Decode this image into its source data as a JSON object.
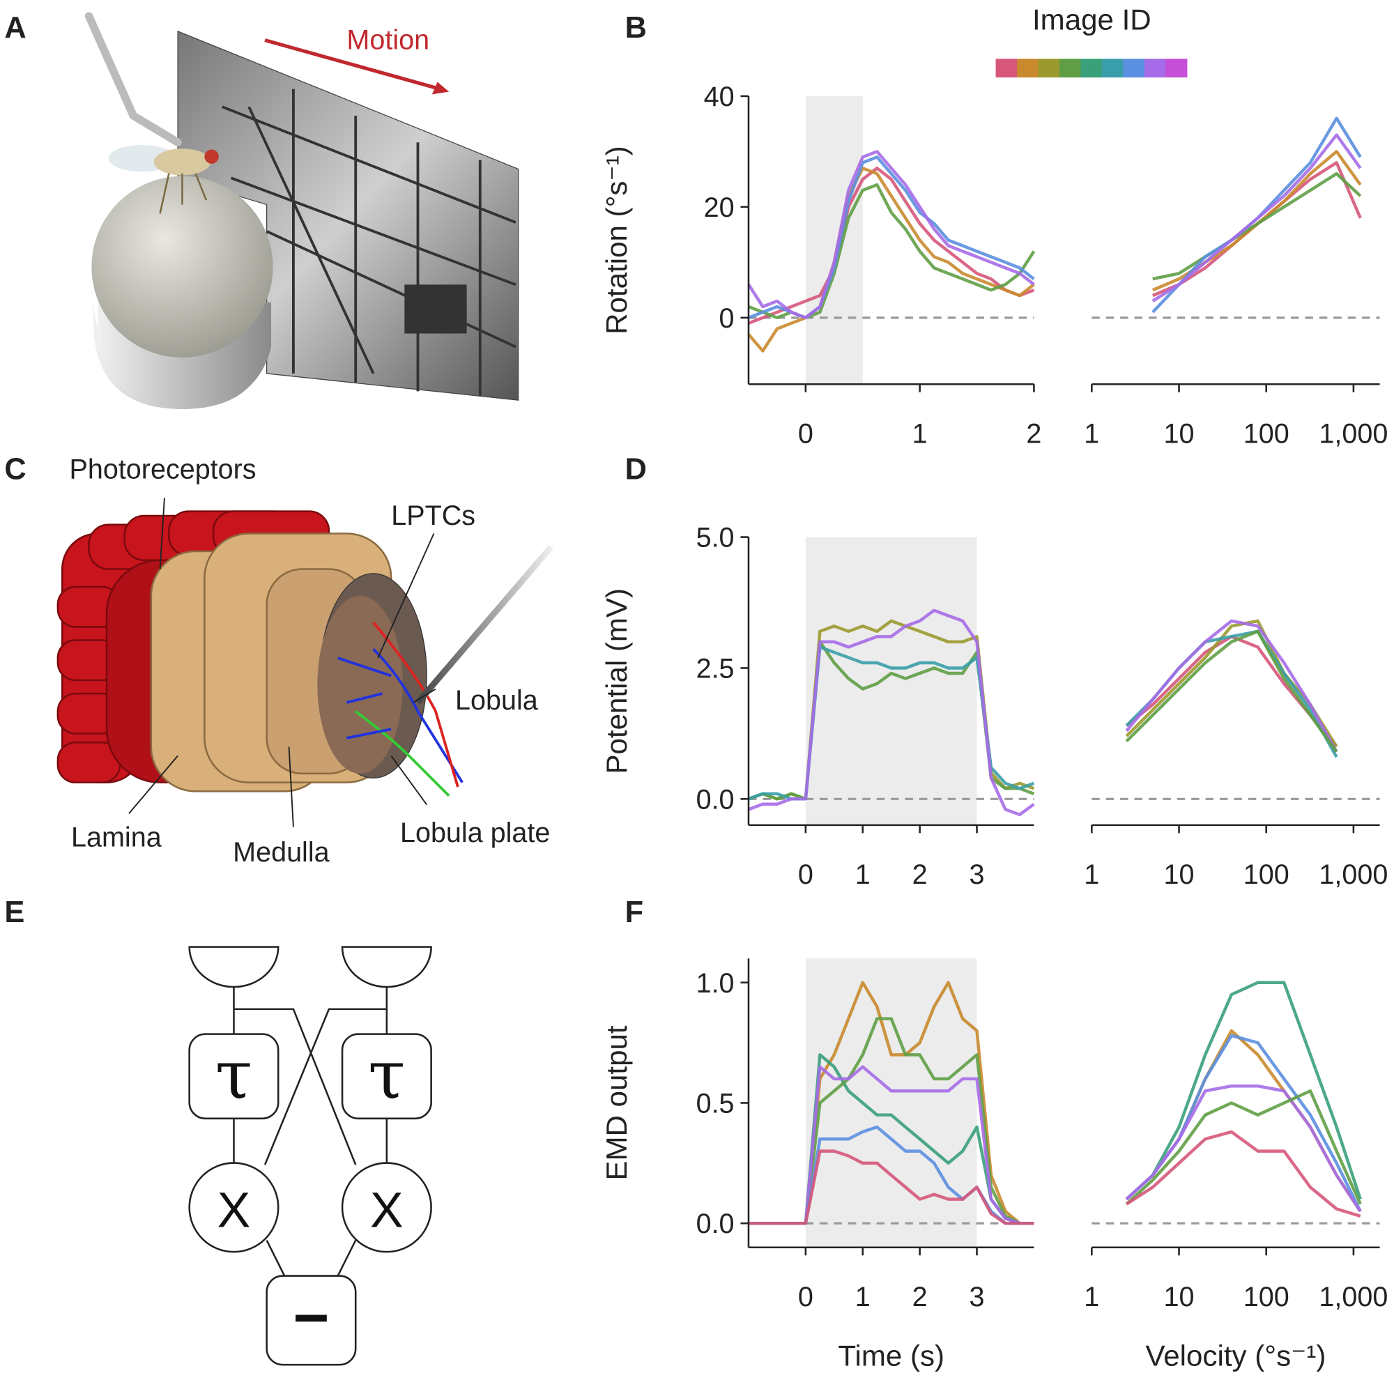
{
  "panel_labels": [
    "A",
    "B",
    "C",
    "D",
    "E",
    "F"
  ],
  "panel_a": {
    "annotation": "Motion"
  },
  "panel_c": {
    "labels": [
      "Photoreceptors",
      "LPTCs",
      "Lobula",
      "Lamina",
      "Medulla",
      "Lobula plate"
    ]
  },
  "panel_e": {
    "delay_labels": [
      "τ",
      "τ"
    ],
    "multiplier_labels": [
      "X",
      "X"
    ],
    "subtraction_label": "−"
  },
  "colorbar": {
    "label": "Image ID",
    "colors": [
      "#d6577a",
      "#c98a2e",
      "#9b9a2f",
      "#5f9e45",
      "#3aa07a",
      "#3a9eaa",
      "#5b8fe0",
      "#a66be8",
      "#c54fd6"
    ]
  },
  "chart_data": [
    {
      "type": "line",
      "ylabel": "Rotation (°s⁻¹)",
      "x": [
        -0.5,
        -0.375,
        -0.25,
        -0.125,
        0,
        0.125,
        0.25,
        0.375,
        0.5,
        0.625,
        0.75,
        0.875,
        1,
        1.125,
        1.25,
        1.375,
        1.5,
        1.625,
        1.75,
        1.875,
        2
      ],
      "xlim": [
        -0.5,
        2
      ],
      "xticks": [
        0,
        1,
        2
      ],
      "ylim": [
        -12,
        40
      ],
      "yticks": [
        0,
        20,
        40
      ],
      "shade": [
        0,
        0.5
      ],
      "reference_line": 0,
      "series": [
        {
          "color": "#d6577a",
          "values": [
            -1,
            0,
            1,
            2,
            3,
            4,
            9,
            20,
            25,
            27,
            25,
            21,
            17,
            14,
            12,
            10,
            8,
            7,
            5,
            4,
            5
          ]
        },
        {
          "color": "#c98a2e",
          "values": [
            -3,
            -6,
            -2,
            -1,
            0,
            2,
            10,
            22,
            27,
            26,
            22,
            18,
            14,
            11,
            10,
            8,
            7,
            6,
            5,
            4,
            6
          ]
        },
        {
          "color": "#5f9e45",
          "values": [
            2,
            1,
            0,
            1,
            0,
            1,
            8,
            18,
            23,
            24,
            19,
            16,
            12,
            9,
            8,
            7,
            6,
            5,
            6,
            8,
            12
          ]
        },
        {
          "color": "#5b8fe0",
          "values": [
            0,
            1,
            2,
            1,
            0,
            2,
            9,
            21,
            28,
            29,
            26,
            23,
            19,
            17,
            14,
            13,
            12,
            11,
            10,
            9,
            7
          ]
        },
        {
          "color": "#a66be8",
          "values": [
            6,
            2,
            3,
            1,
            0,
            2,
            10,
            23,
            29,
            30,
            27,
            24,
            20,
            16,
            13,
            12,
            11,
            10,
            9,
            8,
            6
          ]
        }
      ]
    },
    {
      "type": "line",
      "xscale": "log",
      "x": [
        5,
        10,
        20,
        40,
        80,
        160,
        320,
        640,
        1200
      ],
      "xlim": [
        1,
        2000
      ],
      "xticks": [
        1,
        10,
        100,
        {
          "value": 1000,
          "label": "1,000"
        }
      ],
      "ylim": [
        -12,
        40
      ],
      "reference_line": 0,
      "series": [
        {
          "color": "#d6577a",
          "values": [
            4,
            6,
            9,
            13,
            17,
            21,
            25,
            28,
            18
          ]
        },
        {
          "color": "#c98a2e",
          "values": [
            5,
            7,
            10,
            13,
            17,
            21,
            26,
            30,
            24
          ]
        },
        {
          "color": "#5f9e45",
          "values": [
            7,
            8,
            11,
            14,
            17,
            20,
            23,
            26,
            22
          ]
        },
        {
          "color": "#5b8fe0",
          "values": [
            1,
            6,
            11,
            14,
            18,
            23,
            28,
            36,
            29
          ]
        },
        {
          "color": "#a66be8",
          "values": [
            3,
            6,
            10,
            14,
            18,
            22,
            27,
            33,
            27
          ]
        }
      ]
    },
    {
      "type": "line",
      "ylabel": "Potential (mV)",
      "x": [
        -1,
        -0.75,
        -0.5,
        -0.25,
        0,
        0.25,
        0.5,
        0.75,
        1,
        1.25,
        1.5,
        1.75,
        2,
        2.25,
        2.5,
        2.75,
        3,
        3.25,
        3.5,
        3.75,
        4
      ],
      "xlim": [
        -1,
        4
      ],
      "xticks": [
        0,
        1,
        2,
        3
      ],
      "ylim": [
        -0.5,
        5
      ],
      "yticks": [
        {
          "value": 0,
          "label": "0.0"
        },
        2.5,
        {
          "value": 5,
          "label": "5.0"
        }
      ],
      "shade": [
        0,
        3
      ],
      "reference_line": 0,
      "series": [
        {
          "color": "#9b9a2f",
          "values": [
            0,
            0.1,
            0,
            0.1,
            0,
            3.2,
            3.3,
            3.2,
            3.3,
            3.2,
            3.4,
            3.3,
            3.2,
            3.1,
            3.0,
            3.0,
            3.1,
            0.5,
            0.2,
            0.3,
            0.2
          ]
        },
        {
          "color": "#5f9e45",
          "values": [
            0,
            0.1,
            0,
            0.1,
            0,
            3.0,
            2.6,
            2.3,
            2.1,
            2.2,
            2.4,
            2.3,
            2.4,
            2.5,
            2.4,
            2.4,
            2.8,
            0.4,
            0.2,
            0.2,
            0.1
          ]
        },
        {
          "color": "#3a9eaa",
          "values": [
            0,
            0.1,
            0.1,
            0,
            0,
            2.9,
            2.8,
            2.7,
            2.6,
            2.6,
            2.5,
            2.5,
            2.6,
            2.6,
            2.5,
            2.5,
            2.7,
            0.6,
            0.3,
            0.2,
            0.3
          ]
        },
        {
          "color": "#a66be8",
          "values": [
            -0.2,
            -0.1,
            -0.1,
            0,
            0,
            3.0,
            3.0,
            2.9,
            3.0,
            3.1,
            3.1,
            3.3,
            3.4,
            3.6,
            3.5,
            3.4,
            3.0,
            0.4,
            -0.2,
            -0.3,
            -0.1
          ]
        }
      ]
    },
    {
      "type": "line",
      "xscale": "log",
      "x": [
        2.5,
        5,
        10,
        20,
        40,
        80,
        160,
        320,
        640
      ],
      "xlim": [
        1,
        2000
      ],
      "xticks": [
        1,
        10,
        100,
        {
          "value": 1000,
          "label": "1,000"
        }
      ],
      "ylim": [
        -0.5,
        5
      ],
      "reference_line": 0,
      "series": [
        {
          "color": "#d6577a",
          "values": [
            1.4,
            1.8,
            2.3,
            2.8,
            3.1,
            2.9,
            2.2,
            1.6,
            1.0
          ]
        },
        {
          "color": "#9b9a2f",
          "values": [
            1.2,
            1.7,
            2.2,
            2.7,
            3.3,
            3.4,
            2.4,
            1.8,
            1.0
          ]
        },
        {
          "color": "#3a9eaa",
          "values": [
            1.4,
            1.9,
            2.5,
            3.0,
            3.1,
            3.2,
            2.4,
            1.7,
            0.8
          ]
        },
        {
          "color": "#a66be8",
          "values": [
            1.3,
            1.9,
            2.5,
            3.0,
            3.4,
            3.3,
            2.6,
            1.8,
            0.9
          ]
        },
        {
          "color": "#5f9e45",
          "values": [
            1.1,
            1.6,
            2.1,
            2.6,
            3.0,
            3.2,
            2.3,
            1.6,
            0.9
          ]
        }
      ]
    },
    {
      "type": "line",
      "ylabel": "EMD output",
      "xlabel": "Time (s)",
      "x": [
        -1,
        -0.75,
        -0.5,
        -0.25,
        0,
        0.25,
        0.5,
        0.75,
        1,
        1.25,
        1.5,
        1.75,
        2,
        2.25,
        2.5,
        2.75,
        3,
        3.25,
        3.5,
        3.75,
        4
      ],
      "xlim": [
        -1,
        4
      ],
      "xticks": [
        0,
        1,
        2,
        3
      ],
      "ylim": [
        -0.1,
        1.1
      ],
      "yticks": [
        {
          "value": 0,
          "label": "0.0"
        },
        0.5,
        {
          "value": 1,
          "label": "1.0"
        }
      ],
      "shade": [
        0,
        3
      ],
      "reference_line": 0,
      "series": [
        {
          "color": "#c98a2e",
          "values": [
            0,
            0,
            0,
            0,
            0,
            0.6,
            0.7,
            0.85,
            1.0,
            0.9,
            0.7,
            0.7,
            0.75,
            0.9,
            1.0,
            0.85,
            0.8,
            0.2,
            0.05,
            0,
            0
          ]
        },
        {
          "color": "#3aa07a",
          "values": [
            0,
            0,
            0,
            0,
            0,
            0.7,
            0.65,
            0.55,
            0.5,
            0.45,
            0.45,
            0.4,
            0.35,
            0.3,
            0.25,
            0.3,
            0.4,
            0.1,
            0.02,
            0,
            0
          ]
        },
        {
          "color": "#5f9e45",
          "values": [
            0,
            0,
            0,
            0,
            0,
            0.5,
            0.55,
            0.6,
            0.7,
            0.85,
            0.85,
            0.7,
            0.7,
            0.6,
            0.6,
            0.65,
            0.7,
            0.15,
            0.03,
            0,
            0
          ]
        },
        {
          "color": "#a66be8",
          "values": [
            0,
            0,
            0,
            0,
            0,
            0.65,
            0.6,
            0.6,
            0.65,
            0.6,
            0.55,
            0.55,
            0.55,
            0.55,
            0.55,
            0.6,
            0.6,
            0.1,
            0.02,
            0,
            0
          ]
        },
        {
          "color": "#5b8fe0",
          "values": [
            0,
            0,
            0,
            0,
            0,
            0.35,
            0.35,
            0.35,
            0.38,
            0.4,
            0.35,
            0.3,
            0.3,
            0.25,
            0.15,
            0.1,
            0.15,
            0.05,
            0,
            0,
            0
          ]
        },
        {
          "color": "#d6577a",
          "values": [
            0,
            0,
            0,
            0,
            0,
            0.3,
            0.3,
            0.28,
            0.25,
            0.25,
            0.2,
            0.15,
            0.1,
            0.12,
            0.1,
            0.1,
            0.15,
            0.04,
            0,
            0,
            0
          ]
        }
      ]
    },
    {
      "type": "line",
      "xscale": "log",
      "xlabel": "Velocity (°s⁻¹)",
      "x": [
        2.5,
        5,
        10,
        20,
        40,
        80,
        160,
        320,
        640,
        1200
      ],
      "xlim": [
        1,
        2000
      ],
      "xticks": [
        1,
        10,
        100,
        {
          "value": 1000,
          "label": "1,000"
        }
      ],
      "ylim": [
        -0.1,
        1.1
      ],
      "reference_line": 0,
      "series": [
        {
          "color": "#3aa07a",
          "values": [
            0.1,
            0.2,
            0.4,
            0.7,
            0.95,
            1.0,
            1.0,
            0.7,
            0.4,
            0.1
          ]
        },
        {
          "color": "#c98a2e",
          "values": [
            0.1,
            0.2,
            0.35,
            0.6,
            0.8,
            0.7,
            0.55,
            0.4,
            0.2,
            0.05
          ]
        },
        {
          "color": "#5b8fe0",
          "values": [
            0.1,
            0.2,
            0.35,
            0.6,
            0.78,
            0.75,
            0.6,
            0.45,
            0.25,
            0.05
          ]
        },
        {
          "color": "#a66be8",
          "values": [
            0.1,
            0.2,
            0.35,
            0.55,
            0.57,
            0.57,
            0.55,
            0.4,
            0.2,
            0.05
          ]
        },
        {
          "color": "#5f9e45",
          "values": [
            0.08,
            0.18,
            0.3,
            0.45,
            0.5,
            0.45,
            0.5,
            0.55,
            0.3,
            0.08
          ]
        },
        {
          "color": "#d6577a",
          "values": [
            0.08,
            0.15,
            0.25,
            0.35,
            0.38,
            0.3,
            0.3,
            0.15,
            0.06,
            0.03
          ]
        }
      ]
    }
  ]
}
